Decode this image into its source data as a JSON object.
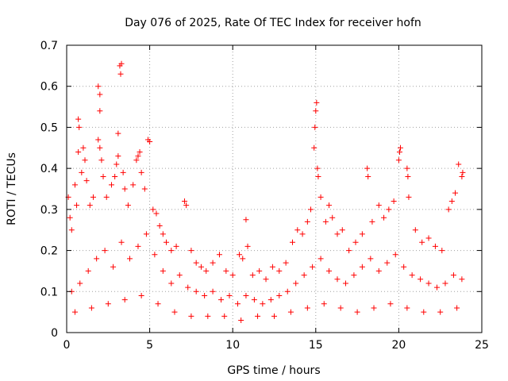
{
  "chart_data": {
    "type": "scatter",
    "title": "Day 076 of 2025, Rate Of TEC Index for receiver hofn",
    "xlabel": "GPS time / hours",
    "ylabel": "ROTI / TECUs",
    "xlim": [
      0,
      25
    ],
    "ylim": [
      0,
      0.7
    ],
    "x_ticks": [
      "0",
      "5",
      "10",
      "15",
      "20",
      "25"
    ],
    "y_ticks": [
      "0",
      "0.1",
      "0.2",
      "0.3",
      "0.4",
      "0.5",
      "0.6",
      "0.7"
    ],
    "grid": true,
    "marker": "plus",
    "color": "#ff0000",
    "series": [
      {
        "points": [
          [
            0.1,
            0.33
          ],
          [
            0.2,
            0.28
          ],
          [
            0.3,
            0.25
          ],
          [
            0.5,
            0.36
          ],
          [
            0.6,
            0.31
          ],
          [
            0.7,
            0.52
          ],
          [
            0.75,
            0.5
          ],
          [
            0.7,
            0.44
          ],
          [
            0.9,
            0.39
          ],
          [
            1.0,
            0.45
          ],
          [
            1.1,
            0.42
          ],
          [
            1.2,
            0.37
          ],
          [
            1.4,
            0.31
          ],
          [
            1.6,
            0.33
          ],
          [
            1.9,
            0.6
          ],
          [
            2.0,
            0.58
          ],
          [
            2.0,
            0.54
          ],
          [
            1.9,
            0.47
          ],
          [
            2.0,
            0.45
          ],
          [
            2.1,
            0.42
          ],
          [
            2.2,
            0.38
          ],
          [
            2.4,
            0.33
          ],
          [
            2.7,
            0.36
          ],
          [
            2.9,
            0.38
          ],
          [
            3.0,
            0.41
          ],
          [
            3.1,
            0.43
          ],
          [
            3.2,
            0.65
          ],
          [
            3.25,
            0.63
          ],
          [
            3.3,
            0.655
          ],
          [
            3.1,
            0.485
          ],
          [
            3.4,
            0.39
          ],
          [
            3.5,
            0.35
          ],
          [
            3.7,
            0.31
          ],
          [
            4.0,
            0.36
          ],
          [
            4.2,
            0.42
          ],
          [
            4.3,
            0.43
          ],
          [
            4.4,
            0.44
          ],
          [
            4.5,
            0.39
          ],
          [
            4.7,
            0.35
          ],
          [
            4.9,
            0.47
          ],
          [
            5.0,
            0.465
          ],
          [
            5.2,
            0.3
          ],
          [
            5.4,
            0.29
          ],
          [
            5.6,
            0.26
          ],
          [
            5.8,
            0.24
          ],
          [
            6.0,
            0.22
          ],
          [
            6.3,
            0.2
          ],
          [
            6.6,
            0.21
          ],
          [
            7.1,
            0.32
          ],
          [
            7.2,
            0.31
          ],
          [
            7.5,
            0.2
          ],
          [
            7.8,
            0.17
          ],
          [
            8.1,
            0.16
          ],
          [
            8.4,
            0.15
          ],
          [
            8.8,
            0.17
          ],
          [
            9.2,
            0.19
          ],
          [
            9.6,
            0.15
          ],
          [
            10.0,
            0.14
          ],
          [
            10.4,
            0.19
          ],
          [
            10.6,
            0.18
          ],
          [
            10.8,
            0.275
          ],
          [
            10.9,
            0.21
          ],
          [
            11.2,
            0.14
          ],
          [
            11.6,
            0.15
          ],
          [
            12.0,
            0.13
          ],
          [
            12.4,
            0.16
          ],
          [
            12.8,
            0.15
          ],
          [
            13.2,
            0.17
          ],
          [
            13.6,
            0.22
          ],
          [
            13.9,
            0.25
          ],
          [
            14.2,
            0.24
          ],
          [
            14.5,
            0.27
          ],
          [
            14.7,
            0.3
          ],
          [
            14.9,
            0.45
          ],
          [
            14.95,
            0.5
          ],
          [
            15.0,
            0.54
          ],
          [
            15.05,
            0.56
          ],
          [
            15.1,
            0.4
          ],
          [
            15.15,
            0.38
          ],
          [
            15.3,
            0.33
          ],
          [
            15.6,
            0.27
          ],
          [
            15.8,
            0.31
          ],
          [
            16.0,
            0.28
          ],
          [
            16.3,
            0.24
          ],
          [
            16.6,
            0.25
          ],
          [
            17.0,
            0.2
          ],
          [
            17.4,
            0.22
          ],
          [
            17.8,
            0.24
          ],
          [
            18.1,
            0.4
          ],
          [
            18.15,
            0.38
          ],
          [
            18.4,
            0.27
          ],
          [
            18.8,
            0.31
          ],
          [
            19.1,
            0.28
          ],
          [
            19.4,
            0.3
          ],
          [
            19.7,
            0.32
          ],
          [
            20.0,
            0.42
          ],
          [
            20.05,
            0.44
          ],
          [
            20.1,
            0.45
          ],
          [
            20.5,
            0.4
          ],
          [
            20.55,
            0.38
          ],
          [
            20.6,
            0.33
          ],
          [
            21.0,
            0.25
          ],
          [
            21.4,
            0.22
          ],
          [
            21.8,
            0.23
          ],
          [
            22.2,
            0.21
          ],
          [
            22.6,
            0.2
          ],
          [
            23.0,
            0.3
          ],
          [
            23.2,
            0.32
          ],
          [
            23.4,
            0.34
          ],
          [
            23.6,
            0.41
          ],
          [
            23.8,
            0.38
          ],
          [
            23.85,
            0.39
          ],
          [
            0.3,
            0.1
          ],
          [
            0.8,
            0.12
          ],
          [
            1.3,
            0.15
          ],
          [
            1.8,
            0.18
          ],
          [
            2.3,
            0.2
          ],
          [
            2.8,
            0.16
          ],
          [
            3.3,
            0.22
          ],
          [
            3.8,
            0.18
          ],
          [
            4.3,
            0.21
          ],
          [
            4.8,
            0.24
          ],
          [
            5.3,
            0.19
          ],
          [
            5.8,
            0.15
          ],
          [
            6.3,
            0.12
          ],
          [
            6.8,
            0.14
          ],
          [
            7.3,
            0.11
          ],
          [
            7.8,
            0.1
          ],
          [
            8.3,
            0.09
          ],
          [
            8.8,
            0.1
          ],
          [
            9.3,
            0.08
          ],
          [
            9.8,
            0.09
          ],
          [
            10.3,
            0.07
          ],
          [
            10.8,
            0.09
          ],
          [
            11.3,
            0.08
          ],
          [
            11.8,
            0.07
          ],
          [
            12.3,
            0.08
          ],
          [
            12.8,
            0.09
          ],
          [
            13.3,
            0.1
          ],
          [
            13.8,
            0.12
          ],
          [
            14.3,
            0.14
          ],
          [
            14.8,
            0.16
          ],
          [
            15.3,
            0.18
          ],
          [
            15.8,
            0.15
          ],
          [
            16.3,
            0.13
          ],
          [
            16.8,
            0.12
          ],
          [
            17.3,
            0.14
          ],
          [
            17.8,
            0.16
          ],
          [
            18.3,
            0.18
          ],
          [
            18.8,
            0.15
          ],
          [
            19.3,
            0.17
          ],
          [
            19.8,
            0.19
          ],
          [
            20.3,
            0.16
          ],
          [
            20.8,
            0.14
          ],
          [
            21.3,
            0.13
          ],
          [
            21.8,
            0.12
          ],
          [
            22.3,
            0.11
          ],
          [
            22.8,
            0.12
          ],
          [
            23.3,
            0.14
          ],
          [
            23.8,
            0.13
          ],
          [
            0.5,
            0.05
          ],
          [
            1.5,
            0.06
          ],
          [
            2.5,
            0.07
          ],
          [
            3.5,
            0.08
          ],
          [
            4.5,
            0.09
          ],
          [
            5.5,
            0.07
          ],
          [
            6.5,
            0.05
          ],
          [
            7.5,
            0.04
          ],
          [
            8.5,
            0.04
          ],
          [
            9.5,
            0.04
          ],
          [
            10.5,
            0.03
          ],
          [
            11.5,
            0.04
          ],
          [
            12.5,
            0.04
          ],
          [
            13.5,
            0.05
          ],
          [
            14.5,
            0.06
          ],
          [
            15.5,
            0.07
          ],
          [
            16.5,
            0.06
          ],
          [
            17.5,
            0.05
          ],
          [
            18.5,
            0.06
          ],
          [
            19.5,
            0.07
          ],
          [
            20.5,
            0.06
          ],
          [
            21.5,
            0.05
          ],
          [
            22.5,
            0.05
          ],
          [
            23.5,
            0.06
          ]
        ]
      }
    ]
  }
}
